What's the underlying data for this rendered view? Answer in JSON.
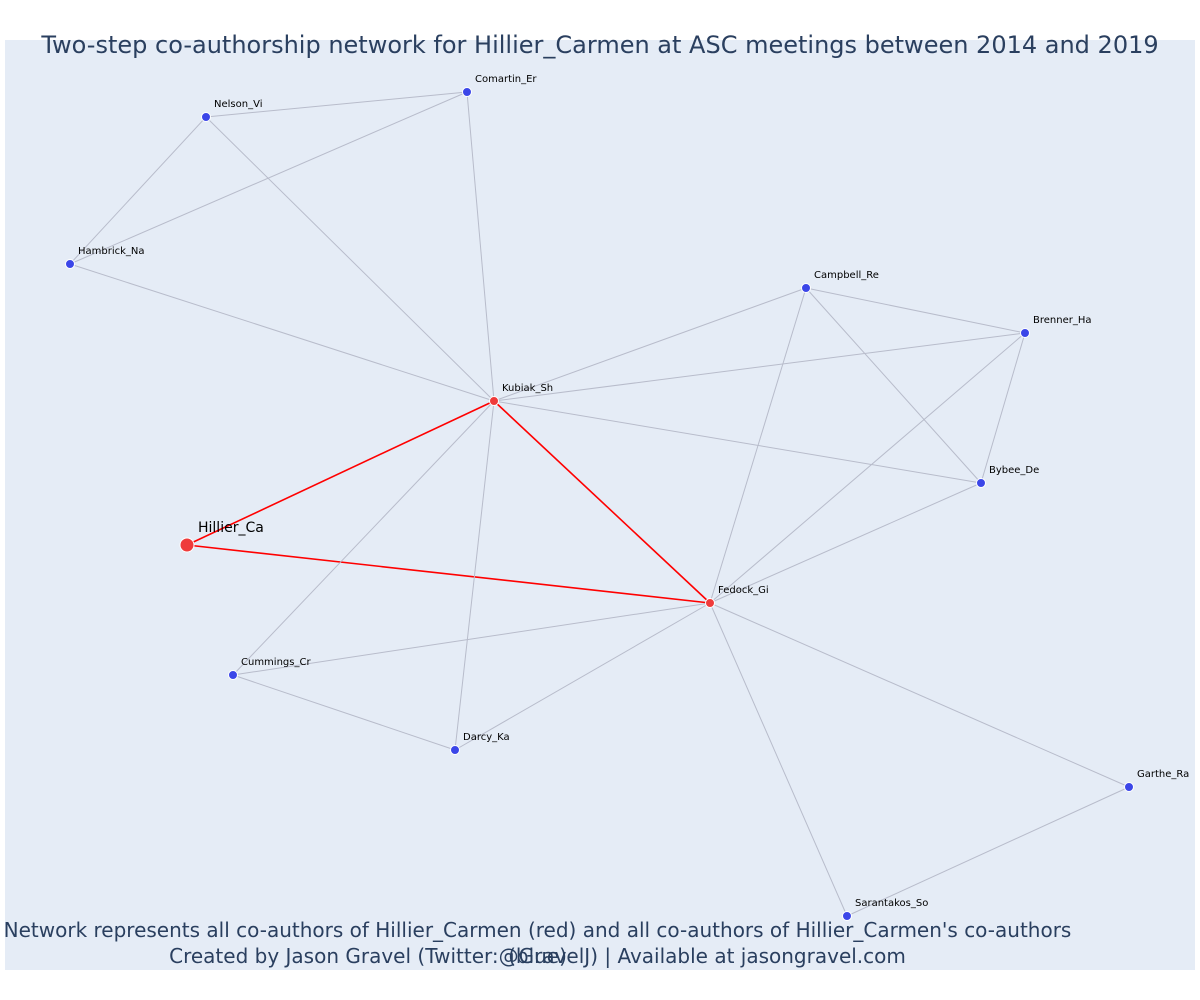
{
  "title": "Two-step co-authorship network for Hillier_Carmen at ASC meetings between 2014 and 2019",
  "caption_line1": "Network represents all co-authors of Hillier_Carmen (red) and all co-authors of Hillier_Carmen's co-authors (blue)",
  "caption_line2": "Created by Jason Gravel (Twitter:@GravelJ) | Available at jasongravel.com",
  "colors": {
    "plot_background": "#e5ecf6",
    "first_degree": "#ef3b3b",
    "second_degree": "#3b46e8",
    "first_degree_edge": "#ff0000",
    "other_edge": "#b8bccb",
    "text": "#2a3f5f"
  },
  "nodes": [
    {
      "id": "Hillier_Ca",
      "label": "Hillier_Ca",
      "group": "focal"
    },
    {
      "id": "Kubiak_Sh",
      "label": "Kubiak_Sh",
      "group": "first"
    },
    {
      "id": "Fedock_Gi",
      "label": "Fedock_Gi",
      "group": "first"
    },
    {
      "id": "Nelson_Vi",
      "label": "Nelson_Vi",
      "group": "second"
    },
    {
      "id": "Comartin_Er",
      "label": "Comartin_Er",
      "group": "second"
    },
    {
      "id": "Hambrick_Na",
      "label": "Hambrick_Na",
      "group": "second"
    },
    {
      "id": "Campbell_Re",
      "label": "Campbell_Re",
      "group": "second"
    },
    {
      "id": "Brenner_Ha",
      "label": "Brenner_Ha",
      "group": "second"
    },
    {
      "id": "Bybee_De",
      "label": "Bybee_De",
      "group": "second"
    },
    {
      "id": "Cummings_Cr",
      "label": "Cummings_Cr",
      "group": "second"
    },
    {
      "id": "Darcy_Ka",
      "label": "Darcy_Ka",
      "group": "second"
    },
    {
      "id": "Garthe_Ra",
      "label": "Garthe_Ra",
      "group": "second"
    },
    {
      "id": "Sarantakos_So",
      "label": "Sarantakos_So",
      "group": "second"
    }
  ],
  "edges": [
    [
      "Hillier_Ca",
      "Kubiak_Sh"
    ],
    [
      "Hillier_Ca",
      "Fedock_Gi"
    ],
    [
      "Kubiak_Sh",
      "Fedock_Gi"
    ],
    [
      "Nelson_Vi",
      "Comartin_Er"
    ],
    [
      "Nelson_Vi",
      "Hambrick_Na"
    ],
    [
      "Nelson_Vi",
      "Kubiak_Sh"
    ],
    [
      "Comartin_Er",
      "Hambrick_Na"
    ],
    [
      "Comartin_Er",
      "Kubiak_Sh"
    ],
    [
      "Hambrick_Na",
      "Kubiak_Sh"
    ],
    [
      "Kubiak_Sh",
      "Campbell_Re"
    ],
    [
      "Kubiak_Sh",
      "Brenner_Ha"
    ],
    [
      "Kubiak_Sh",
      "Bybee_De"
    ],
    [
      "Kubiak_Sh",
      "Cummings_Cr"
    ],
    [
      "Kubiak_Sh",
      "Darcy_Ka"
    ],
    [
      "Campbell_Re",
      "Brenner_Ha"
    ],
    [
      "Campbell_Re",
      "Bybee_De"
    ],
    [
      "Campbell_Re",
      "Fedock_Gi"
    ],
    [
      "Brenner_Ha",
      "Bybee_De"
    ],
    [
      "Brenner_Ha",
      "Fedock_Gi"
    ],
    [
      "Bybee_De",
      "Fedock_Gi"
    ],
    [
      "Fedock_Gi",
      "Cummings_Cr"
    ],
    [
      "Fedock_Gi",
      "Darcy_Ka"
    ],
    [
      "Fedock_Gi",
      "Garthe_Ra"
    ],
    [
      "Fedock_Gi",
      "Sarantakos_So"
    ],
    [
      "Cummings_Cr",
      "Darcy_Ka"
    ],
    [
      "Garthe_Ra",
      "Sarantakos_So"
    ]
  ]
}
